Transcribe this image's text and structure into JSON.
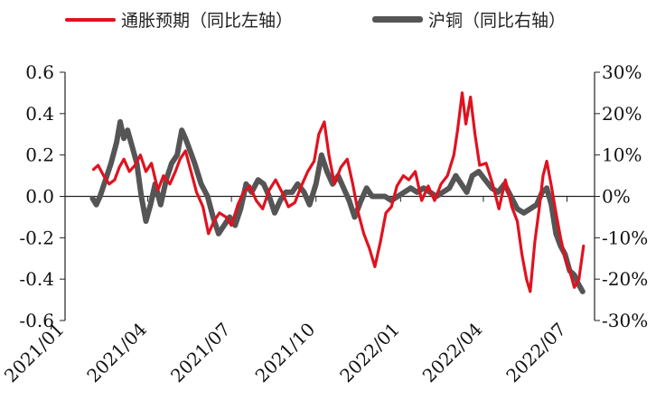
{
  "chart_data": {
    "type": "line",
    "title": "",
    "legend_position": "top",
    "grid": false,
    "x": {
      "type": "date",
      "range": [
        "2021-01-01",
        "2022-07-31"
      ],
      "tick_labels": [
        "2021/01",
        "2021/04",
        "2021/07",
        "2021/10",
        "2022/01",
        "2022/04",
        "2022/07"
      ]
    },
    "y_left": {
      "label": "",
      "range": [
        -0.6,
        0.6
      ],
      "ticks": [
        0.6,
        0.4,
        0.2,
        0.0,
        -0.2,
        -0.4,
        -0.6
      ],
      "tick_labels": [
        "0.6",
        "0.4",
        "0.2",
        "0.0",
        "-0.2",
        "-0.4",
        "-0.6"
      ]
    },
    "y_right": {
      "label": "",
      "range": [
        -30,
        30
      ],
      "unit": "%",
      "ticks": [
        30,
        20,
        10,
        0,
        -10,
        -20,
        -30
      ],
      "tick_labels": [
        "30%",
        "20%",
        "10%",
        "0%",
        "-10%",
        "-20%",
        "-30%"
      ]
    },
    "series": [
      {
        "name": "通胀预期（同比左轴）",
        "axis": "left",
        "color": "#e0121f",
        "points": [
          [
            "2021-02-01",
            0.13
          ],
          [
            "2021-02-06",
            0.15
          ],
          [
            "2021-02-12",
            0.1
          ],
          [
            "2021-02-18",
            0.06
          ],
          [
            "2021-02-24",
            0.08
          ],
          [
            "2021-03-01",
            0.14
          ],
          [
            "2021-03-06",
            0.18
          ],
          [
            "2021-03-12",
            0.12
          ],
          [
            "2021-03-18",
            0.15
          ],
          [
            "2021-03-24",
            0.2
          ],
          [
            "2021-03-30",
            0.12
          ],
          [
            "2021-04-05",
            0.16
          ],
          [
            "2021-04-12",
            0.03
          ],
          [
            "2021-04-18",
            0.1
          ],
          [
            "2021-04-25",
            0.06
          ],
          [
            "2021-05-01",
            0.12
          ],
          [
            "2021-05-06",
            0.18
          ],
          [
            "2021-05-12",
            0.22
          ],
          [
            "2021-05-18",
            0.12
          ],
          [
            "2021-05-24",
            0.02
          ],
          [
            "2021-05-31",
            -0.05
          ],
          [
            "2021-06-06",
            -0.18
          ],
          [
            "2021-06-12",
            -0.12
          ],
          [
            "2021-06-18",
            -0.08
          ],
          [
            "2021-06-25",
            -0.1
          ],
          [
            "2021-07-01",
            -0.14
          ],
          [
            "2021-07-08",
            -0.04
          ],
          [
            "2021-07-14",
            0.02
          ],
          [
            "2021-07-21",
            0.05
          ],
          [
            "2021-07-28",
            -0.02
          ],
          [
            "2021-08-04",
            -0.06
          ],
          [
            "2021-08-11",
            0.03
          ],
          [
            "2021-08-18",
            0.08
          ],
          [
            "2021-08-25",
            0.02
          ],
          [
            "2021-09-01",
            -0.05
          ],
          [
            "2021-09-08",
            -0.03
          ],
          [
            "2021-09-15",
            0.05
          ],
          [
            "2021-09-22",
            0.12
          ],
          [
            "2021-09-29",
            0.17
          ],
          [
            "2021-10-04",
            0.3
          ],
          [
            "2021-10-10",
            0.36
          ],
          [
            "2021-10-15",
            0.2
          ],
          [
            "2021-10-21",
            0.06
          ],
          [
            "2021-10-28",
            0.14
          ],
          [
            "2021-11-04",
            0.18
          ],
          [
            "2021-11-10",
            0.06
          ],
          [
            "2021-11-16",
            -0.08
          ],
          [
            "2021-11-22",
            -0.18
          ],
          [
            "2021-11-28",
            -0.25
          ],
          [
            "2021-12-04",
            -0.34
          ],
          [
            "2021-12-10",
            -0.22
          ],
          [
            "2021-12-16",
            -0.08
          ],
          [
            "2021-12-22",
            -0.05
          ],
          [
            "2021-12-28",
            0.05
          ],
          [
            "2022-01-04",
            0.1
          ],
          [
            "2022-01-10",
            0.08
          ],
          [
            "2022-01-17",
            0.12
          ],
          [
            "2022-01-24",
            -0.02
          ],
          [
            "2022-01-31",
            0.05
          ],
          [
            "2022-02-07",
            -0.02
          ],
          [
            "2022-02-14",
            0.06
          ],
          [
            "2022-02-21",
            0.1
          ],
          [
            "2022-02-28",
            0.2
          ],
          [
            "2022-03-04",
            0.32
          ],
          [
            "2022-03-09",
            0.5
          ],
          [
            "2022-03-13",
            0.35
          ],
          [
            "2022-03-18",
            0.48
          ],
          [
            "2022-03-23",
            0.3
          ],
          [
            "2022-03-28",
            0.15
          ],
          [
            "2022-04-04",
            0.16
          ],
          [
            "2022-04-11",
            0.06
          ],
          [
            "2022-04-18",
            -0.06
          ],
          [
            "2022-04-25",
            0.08
          ],
          [
            "2022-05-02",
            -0.05
          ],
          [
            "2022-05-08",
            -0.12
          ],
          [
            "2022-05-13",
            -0.28
          ],
          [
            "2022-05-18",
            -0.4
          ],
          [
            "2022-05-22",
            -0.46
          ],
          [
            "2022-05-27",
            -0.22
          ],
          [
            "2022-06-01",
            -0.05
          ],
          [
            "2022-06-05",
            0.1
          ],
          [
            "2022-06-09",
            0.17
          ],
          [
            "2022-06-14",
            0.05
          ],
          [
            "2022-06-19",
            -0.08
          ],
          [
            "2022-06-24",
            -0.2
          ],
          [
            "2022-06-29",
            -0.3
          ],
          [
            "2022-07-04",
            -0.36
          ],
          [
            "2022-07-09",
            -0.44
          ],
          [
            "2022-07-14",
            -0.4
          ],
          [
            "2022-07-19",
            -0.24
          ]
        ]
      },
      {
        "name": "沪铜（同比右轴）",
        "axis": "right",
        "color": "#555555",
        "points": [
          [
            "2021-01-31",
            -0.5
          ],
          [
            "2021-02-04",
            -2
          ],
          [
            "2021-02-08",
            0
          ],
          [
            "2021-02-14",
            4
          ],
          [
            "2021-02-20",
            8
          ],
          [
            "2021-02-26",
            13
          ],
          [
            "2021-03-02",
            18
          ],
          [
            "2021-03-06",
            14
          ],
          [
            "2021-03-10",
            16
          ],
          [
            "2021-03-15",
            12
          ],
          [
            "2021-03-20",
            8
          ],
          [
            "2021-03-25",
            0
          ],
          [
            "2021-03-30",
            -6
          ],
          [
            "2021-04-04",
            -2
          ],
          [
            "2021-04-09",
            3
          ],
          [
            "2021-04-15",
            -2
          ],
          [
            "2021-04-21",
            4
          ],
          [
            "2021-04-27",
            8
          ],
          [
            "2021-05-03",
            10
          ],
          [
            "2021-05-08",
            16
          ],
          [
            "2021-05-12",
            14
          ],
          [
            "2021-05-17",
            11
          ],
          [
            "2021-05-22",
            8
          ],
          [
            "2021-05-29",
            3
          ],
          [
            "2021-06-05",
            0
          ],
          [
            "2021-06-11",
            -5
          ],
          [
            "2021-06-17",
            -9
          ],
          [
            "2021-06-23",
            -7
          ],
          [
            "2021-06-29",
            -5
          ],
          [
            "2021-07-05",
            -7
          ],
          [
            "2021-07-11",
            -3
          ],
          [
            "2021-07-17",
            3
          ],
          [
            "2021-07-23",
            1
          ],
          [
            "2021-07-30",
            4
          ],
          [
            "2021-08-05",
            3
          ],
          [
            "2021-08-11",
            0
          ],
          [
            "2021-08-17",
            -4
          ],
          [
            "2021-08-23",
            -1
          ],
          [
            "2021-08-29",
            1
          ],
          [
            "2021-09-05",
            1
          ],
          [
            "2021-09-11",
            3
          ],
          [
            "2021-09-18",
            1
          ],
          [
            "2021-09-24",
            -2
          ],
          [
            "2021-10-01",
            3
          ],
          [
            "2021-10-07",
            10
          ],
          [
            "2021-10-13",
            6
          ],
          [
            "2021-10-19",
            3
          ],
          [
            "2021-10-25",
            5
          ],
          [
            "2021-10-31",
            2
          ],
          [
            "2021-11-06",
            -1
          ],
          [
            "2021-11-12",
            -5
          ],
          [
            "2021-11-19",
            -1
          ],
          [
            "2021-11-25",
            2
          ],
          [
            "2021-12-01",
            0
          ],
          [
            "2021-12-08",
            0
          ],
          [
            "2021-12-15",
            0
          ],
          [
            "2021-12-22",
            -1
          ],
          [
            "2021-12-29",
            0
          ],
          [
            "2022-01-05",
            1
          ],
          [
            "2022-01-12",
            2
          ],
          [
            "2022-01-19",
            1
          ],
          [
            "2022-01-26",
            2
          ],
          [
            "2022-02-02",
            1
          ],
          [
            "2022-02-09",
            0
          ],
          [
            "2022-02-16",
            1
          ],
          [
            "2022-02-23",
            2
          ],
          [
            "2022-03-02",
            5
          ],
          [
            "2022-03-08",
            3
          ],
          [
            "2022-03-14",
            1
          ],
          [
            "2022-03-20",
            5
          ],
          [
            "2022-03-27",
            6
          ],
          [
            "2022-04-03",
            4
          ],
          [
            "2022-04-10",
            2
          ],
          [
            "2022-04-17",
            1
          ],
          [
            "2022-04-24",
            3
          ],
          [
            "2022-05-01",
            0
          ],
          [
            "2022-05-08",
            -3
          ],
          [
            "2022-05-15",
            -4
          ],
          [
            "2022-05-22",
            -3
          ],
          [
            "2022-05-29",
            -2
          ],
          [
            "2022-06-04",
            1
          ],
          [
            "2022-06-09",
            2
          ],
          [
            "2022-06-14",
            -2
          ],
          [
            "2022-06-19",
            -9
          ],
          [
            "2022-06-24",
            -12
          ],
          [
            "2022-06-29",
            -14
          ],
          [
            "2022-07-04",
            -18
          ],
          [
            "2022-07-09",
            -19
          ],
          [
            "2022-07-13",
            -21
          ],
          [
            "2022-07-18",
            -23
          ]
        ]
      }
    ]
  }
}
